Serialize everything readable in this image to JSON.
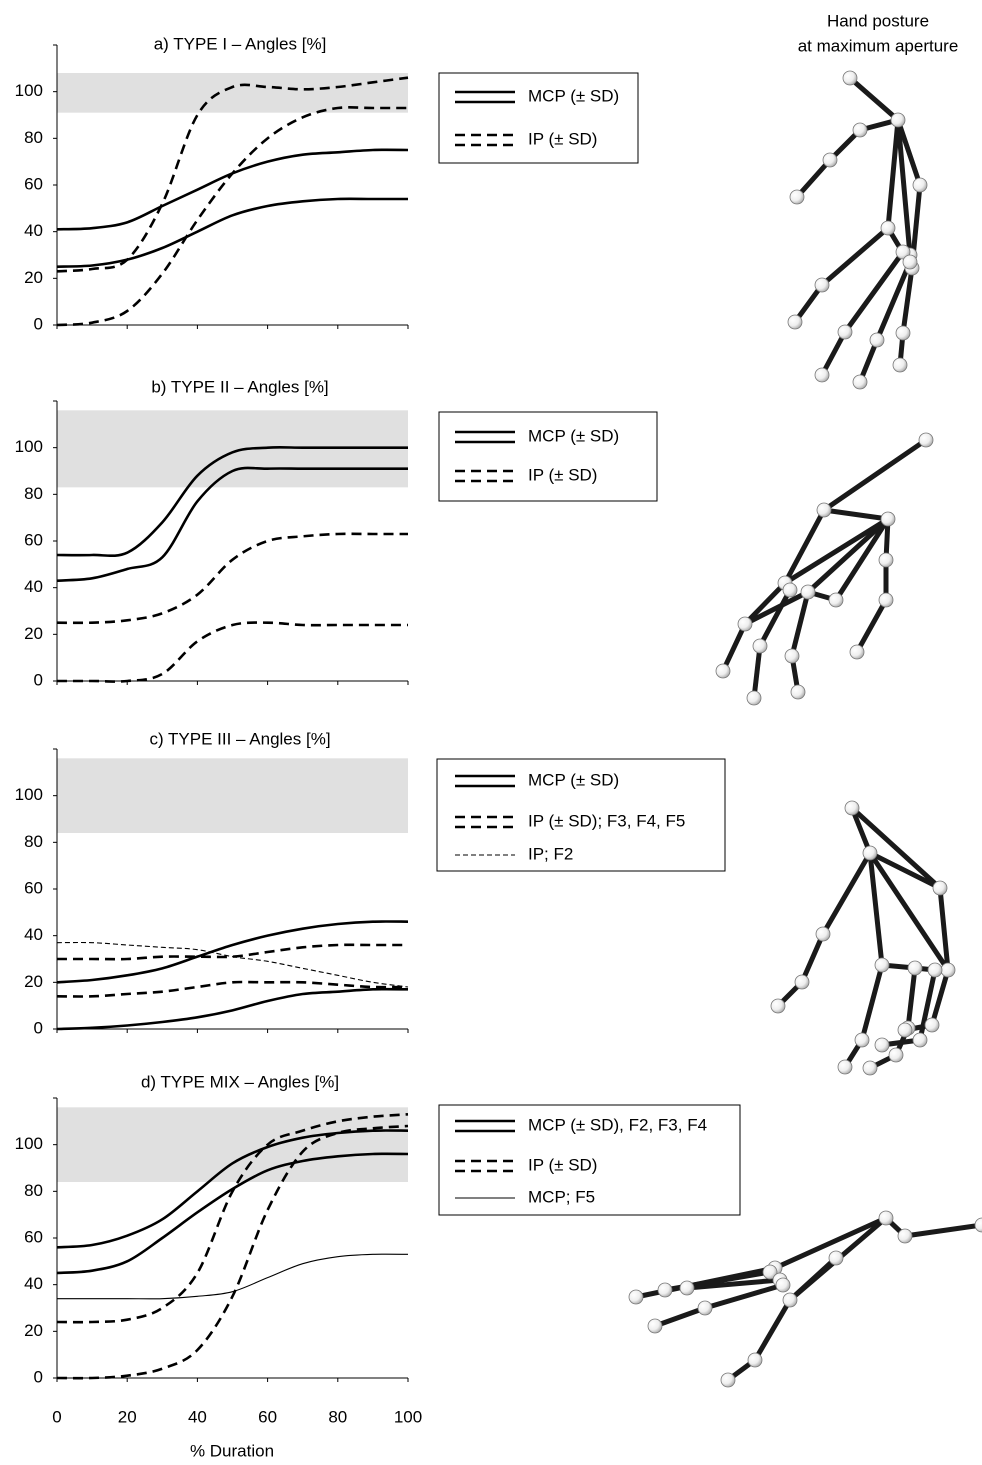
{
  "illustration": {
    "title": [
      "Hand posture",
      "at maximum aperture"
    ]
  },
  "chart_data": [
    {
      "type": "line",
      "title": "a) TYPE I – Angles [%]",
      "x": [
        0,
        10,
        20,
        30,
        40,
        50,
        60,
        70,
        80,
        90,
        100
      ],
      "xlim": [
        0,
        100
      ],
      "xticks": [
        0,
        20,
        40,
        60,
        80,
        100
      ],
      "ylim": [
        0,
        120
      ],
      "yticks": [
        0,
        20,
        40,
        60,
        80,
        100
      ],
      "band": [
        91,
        108
      ],
      "band_color": "#e0e0e0",
      "series": [
        {
          "name": "MCP (± SD)",
          "color": "#000000",
          "dashed": false,
          "weight": "bold",
          "lines": [
            {
              "values": [
                41,
                41.5,
                44,
                51,
                58,
                65,
                70,
                73,
                74,
                75,
                75
              ]
            },
            {
              "values": [
                25,
                25.5,
                28,
                33,
                40,
                47,
                51,
                53,
                54,
                54,
                54
              ]
            }
          ]
        },
        {
          "name": "IP (± SD)",
          "color": "#000000",
          "dashed": true,
          "weight": "bold",
          "lines": [
            {
              "values": [
                23,
                24,
                28,
                52,
                90,
                102,
                102,
                101,
                102,
                104,
                106
              ]
            },
            {
              "values": [
                0,
                1,
                6,
                22,
                45,
                65,
                80,
                89,
                93,
                93,
                93
              ]
            }
          ]
        }
      ]
    },
    {
      "type": "line",
      "title": "b) TYPE II – Angles [%]",
      "x": [
        0,
        10,
        20,
        30,
        40,
        50,
        60,
        70,
        80,
        90,
        100
      ],
      "xlim": [
        0,
        100
      ],
      "xticks": [
        0,
        20,
        40,
        60,
        80,
        100
      ],
      "ylim": [
        0,
        120
      ],
      "yticks": [
        0,
        20,
        40,
        60,
        80,
        100
      ],
      "band": [
        83,
        116
      ],
      "band_color": "#e0e0e0",
      "series": [
        {
          "name": "MCP (± SD)",
          "color": "#000000",
          "dashed": false,
          "weight": "bold",
          "lines": [
            {
              "values": [
                54,
                54,
                55,
                68,
                88,
                98,
                100,
                100,
                100,
                100,
                100
              ]
            },
            {
              "values": [
                43,
                44,
                48,
                53,
                77,
                90,
                91,
                91,
                91,
                91,
                91
              ]
            }
          ]
        },
        {
          "name": "IP (± SD)",
          "color": "#000000",
          "dashed": true,
          "weight": "bold",
          "lines": [
            {
              "values": [
                25,
                25,
                26,
                29,
                37,
                52,
                60,
                62,
                63,
                63,
                63
              ]
            },
            {
              "values": [
                0,
                0,
                0,
                3,
                17,
                24,
                25,
                24,
                24,
                24,
                24
              ]
            }
          ]
        }
      ]
    },
    {
      "type": "line",
      "title": "c) TYPE III – Angles [%]",
      "x": [
        0,
        10,
        20,
        30,
        40,
        50,
        60,
        70,
        80,
        90,
        100
      ],
      "xlim": [
        0,
        100
      ],
      "xticks": [
        0,
        20,
        40,
        60,
        80,
        100
      ],
      "ylim": [
        0,
        120
      ],
      "yticks": [
        0,
        20,
        40,
        60,
        80,
        100
      ],
      "band": [
        84,
        116
      ],
      "band_color": "#e0e0e0",
      "series": [
        {
          "name": "MCP (± SD)",
          "color": "#000000",
          "dashed": false,
          "weight": "bold",
          "lines": [
            {
              "values": [
                20,
                21,
                23,
                26,
                31,
                36,
                40,
                43,
                45,
                46,
                46
              ]
            },
            {
              "values": [
                0,
                0.5,
                1.5,
                3,
                5,
                8,
                12,
                15,
                16,
                17,
                17
              ]
            }
          ]
        },
        {
          "name": "IP (± SD); F3, F4, F5",
          "color": "#000000",
          "dashed": true,
          "weight": "bold",
          "lines": [
            {
              "values": [
                30,
                30,
                30,
                31,
                31,
                31,
                33,
                35,
                36,
                36,
                36
              ]
            },
            {
              "values": [
                14,
                14,
                15,
                16,
                18,
                20,
                20,
                20,
                19,
                18,
                18
              ]
            }
          ]
        },
        {
          "name": "IP; F2",
          "color": "#000000",
          "dashed": true,
          "weight": "thin",
          "lines": [
            {
              "values": [
                37,
                37,
                36,
                35,
                34,
                31,
                29,
                26,
                23,
                20,
                18
              ]
            }
          ]
        }
      ]
    },
    {
      "type": "line",
      "title": "d) TYPE MIX – Angles [%]",
      "xlabel": "% Duration",
      "xtick_labels": true,
      "x": [
        0,
        10,
        20,
        30,
        40,
        50,
        60,
        70,
        80,
        90,
        100
      ],
      "xlim": [
        0,
        100
      ],
      "xticks": [
        0,
        20,
        40,
        60,
        80,
        100
      ],
      "ylim": [
        0,
        120
      ],
      "yticks": [
        0,
        20,
        40,
        60,
        80,
        100
      ],
      "band": [
        84,
        116
      ],
      "band_color": "#e0e0e0",
      "series": [
        {
          "name": "MCP (± SD), F2, F3, F4",
          "color": "#000000",
          "dashed": false,
          "weight": "bold",
          "lines": [
            {
              "values": [
                56,
                57,
                61,
                68,
                80,
                92,
                99,
                103,
                105,
                106,
                106
              ]
            },
            {
              "values": [
                45,
                46,
                50,
                60,
                71,
                81,
                89,
                93,
                95,
                96,
                96
              ]
            }
          ]
        },
        {
          "name": "IP (± SD)",
          "color": "#000000",
          "dashed": true,
          "weight": "bold",
          "lines": [
            {
              "values": [
                24,
                24,
                25,
                30,
                45,
                80,
                100,
                106,
                110,
                112,
                113
              ]
            },
            {
              "values": [
                0,
                0,
                1,
                4,
                12,
                35,
                72,
                97,
                105,
                107,
                108
              ]
            }
          ]
        },
        {
          "name": "MCP; F5",
          "color": "#000000",
          "dashed": false,
          "weight": "thin",
          "lines": [
            {
              "values": [
                34,
                34,
                34,
                34,
                35,
                37,
                43,
                49,
                52,
                53,
                53
              ]
            }
          ]
        }
      ]
    }
  ]
}
